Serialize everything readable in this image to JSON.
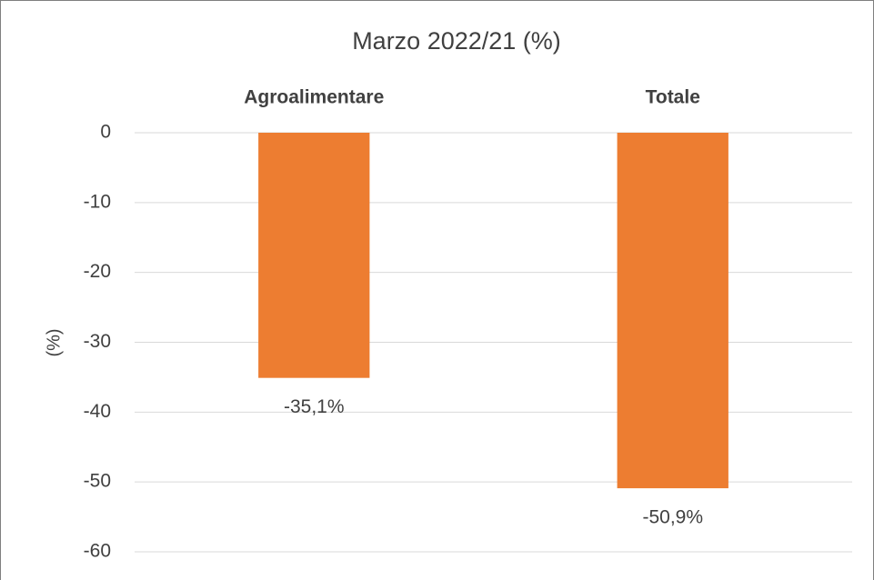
{
  "chart_data": {
    "type": "bar",
    "title": "Marzo 2022/21 (%)",
    "y_label": "(%)",
    "categories": [
      "Agroalimentare",
      "Totale"
    ],
    "values": [
      -35.1,
      -50.9
    ],
    "value_labels": [
      "-35,1%",
      "-50,9%"
    ],
    "color": "#ed7d31",
    "ylim": [
      -60,
      0
    ],
    "yticks": [
      0,
      -10,
      -20,
      -30,
      -40,
      -50,
      -60
    ],
    "grid": true
  }
}
